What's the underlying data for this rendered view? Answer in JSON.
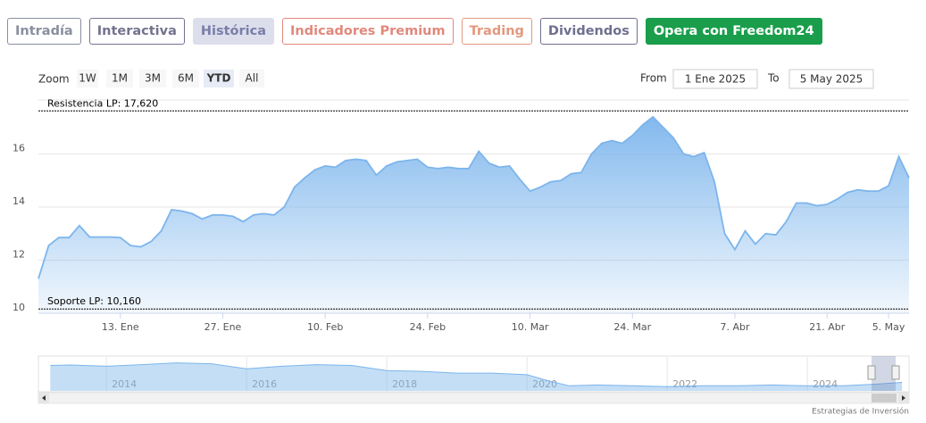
{
  "tabs": [
    {
      "label": "Intradía",
      "color": "#8a8fa0"
    },
    {
      "label": "Interactiva",
      "color": "#73738f"
    },
    {
      "label": "Histórica",
      "color": "#7b7ea8",
      "fill": "#dcdeec"
    },
    {
      "label": "Indicadores Premium",
      "color": "#e0897c"
    },
    {
      "label": "Trading",
      "color": "#e3987f"
    },
    {
      "label": "Dividendos",
      "color": "#6f7090"
    },
    {
      "label": "Opera con Freedom24",
      "color": "#ffffff",
      "fill": "#1a9e4b"
    }
  ],
  "range_selector": {
    "label": "Zoom",
    "buttons": [
      "1W",
      "1M",
      "3M",
      "6M",
      "YTD",
      "All"
    ],
    "selected": 4,
    "from_label": "From",
    "from": "1 Ene 2025",
    "to_label": "To",
    "to": "5 May 2025"
  },
  "credit": "Estrategias de Inversión",
  "chart_data": [
    {
      "type": "area",
      "color": "#7cb5ec",
      "categories": [
        null,
        null,
        null,
        null,
        null,
        null,
        null,
        null,
        "13. Ene",
        null,
        null,
        null,
        null,
        null,
        null,
        null,
        null,
        null,
        "27. Ene",
        null,
        null,
        null,
        null,
        null,
        null,
        null,
        null,
        null,
        "10. Feb",
        null,
        null,
        null,
        null,
        null,
        null,
        null,
        null,
        null,
        "24. Feb",
        null,
        null,
        null,
        null,
        null,
        null,
        null,
        null,
        null,
        "10. Mar",
        null,
        null,
        null,
        null,
        null,
        null,
        null,
        null,
        null,
        "24. Mar",
        null,
        null,
        null,
        null,
        null,
        null,
        null,
        null,
        null,
        "7. Abr",
        null,
        null,
        null,
        null,
        null,
        null,
        null,
        null,
        "21. Abr",
        null,
        null,
        null,
        null,
        null,
        "5. May",
        null,
        null
      ],
      "values": [
        11.3,
        12.55,
        12.85,
        12.85,
        13.3,
        12.87,
        12.87,
        12.87,
        12.85,
        12.55,
        12.5,
        12.7,
        13.1,
        13.9,
        13.85,
        13.75,
        13.55,
        13.7,
        13.7,
        13.65,
        13.45,
        13.7,
        13.75,
        13.7,
        14.0,
        14.75,
        15.1,
        15.4,
        15.55,
        15.5,
        15.75,
        15.8,
        15.75,
        15.2,
        15.55,
        15.7,
        15.75,
        15.8,
        15.5,
        15.45,
        15.5,
        15.45,
        15.45,
        16.1,
        15.65,
        15.5,
        15.55,
        15.05,
        14.6,
        14.75,
        14.95,
        15.0,
        15.25,
        15.3,
        16.0,
        16.4,
        16.5,
        16.4,
        16.7,
        17.1,
        17.4,
        17.0,
        16.6,
        16.0,
        15.9,
        16.05,
        14.95,
        13.0,
        12.4,
        13.1,
        12.6,
        13.0,
        12.95,
        13.45,
        14.15,
        14.15,
        14.05,
        14.1,
        14.3,
        14.55,
        14.65,
        14.6,
        14.6,
        14.8,
        15.9,
        15.1
      ],
      "ylim": [
        10,
        18
      ],
      "yticks": [
        10,
        12,
        14,
        16
      ],
      "grid": true,
      "plot_lines": [
        {
          "label": "Resistencia LP: 17,620",
          "value": 17.62
        },
        {
          "label": "Soporte LP: 10,160",
          "value": 10.16
        }
      ]
    },
    {
      "type": "area",
      "color": "#7cb5ec",
      "x": [
        2013.2,
        2013.5,
        2014,
        2014.5,
        2015,
        2015.5,
        2016,
        2016.5,
        2017,
        2017.5,
        2018,
        2018.5,
        2019,
        2019.5,
        2020,
        2020.3,
        2020.6,
        2021,
        2021.5,
        2022,
        2022.5,
        2023,
        2023.5,
        2024,
        2024.5,
        2025,
        2025.35
      ],
      "values": [
        30,
        30.5,
        29,
        31,
        33,
        32,
        26,
        29,
        31,
        30,
        24,
        23,
        21,
        21,
        19,
        12,
        6,
        7,
        6,
        5,
        6,
        6,
        7,
        6,
        6,
        8,
        10
      ],
      "xlim": [
        2013.03,
        2025.45
      ],
      "xticks": [
        2014,
        2016,
        2018,
        2020,
        2022,
        2024
      ],
      "ylim": [
        0,
        40
      ]
    }
  ]
}
